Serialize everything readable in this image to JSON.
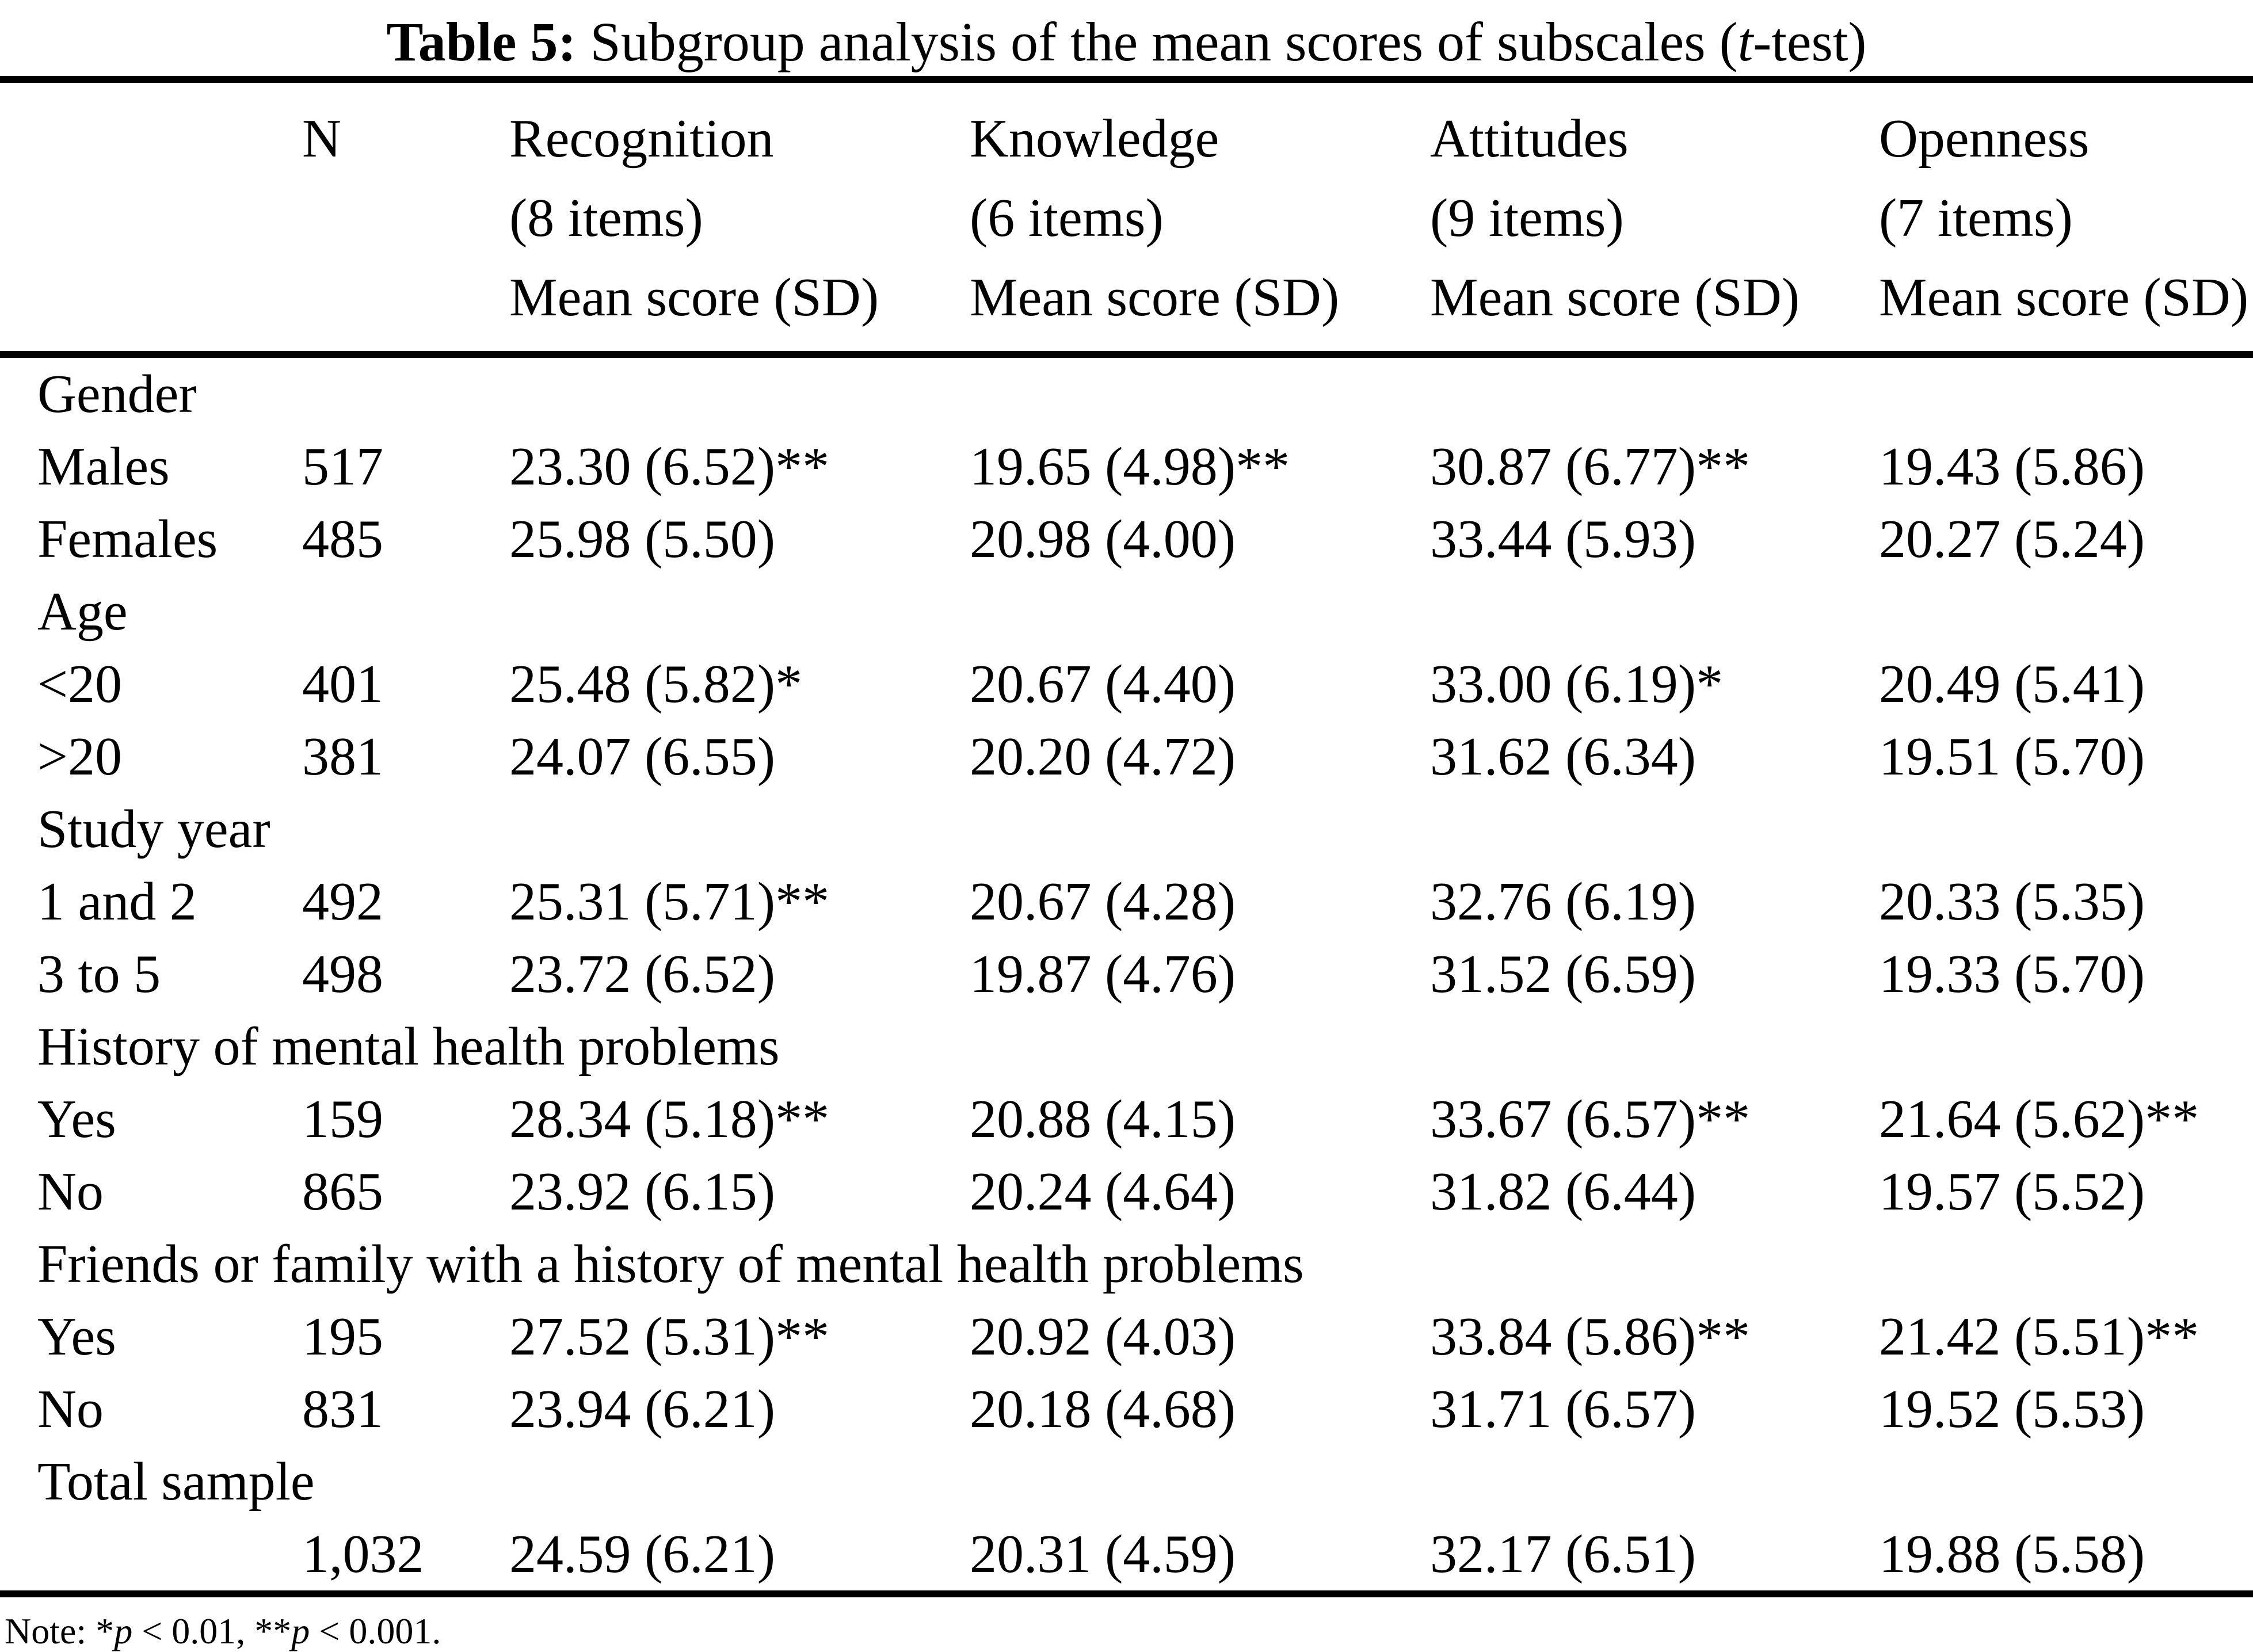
{
  "title": {
    "prefix": "Table 5:",
    "main": "  Subgroup analysis of the mean scores of subscales (",
    "italic_t": "t",
    "suffix": "-test)"
  },
  "header": {
    "n_label": "N",
    "columns": [
      {
        "name": "Recognition",
        "items": "(8 items)",
        "measure": "Mean score (SD)"
      },
      {
        "name": "Knowledge",
        "items": "(6 items)",
        "measure": "Mean score (SD)"
      },
      {
        "name": "Attitudes",
        "items": "(9 items)",
        "measure": "Mean score (SD)"
      },
      {
        "name": "Openness",
        "items": "(7 items)",
        "measure": "Mean score (SD)"
      }
    ]
  },
  "rows": [
    {
      "type": "section",
      "label": "Gender"
    },
    {
      "type": "data",
      "label": "Males",
      "n": "517",
      "recognition": "23.30 (6.52)**",
      "knowledge": "19.65 (4.98)**",
      "attitudes": "30.87 (6.77)**",
      "openness": "19.43 (5.86)"
    },
    {
      "type": "data",
      "label": "Females",
      "n": "485",
      "recognition": "25.98 (5.50)",
      "knowledge": "20.98 (4.00)",
      "attitudes": "33.44 (5.93)",
      "openness": "20.27 (5.24)"
    },
    {
      "type": "section",
      "label": "Age"
    },
    {
      "type": "data",
      "label": "<20",
      "n": "401",
      "recognition": "25.48 (5.82)*",
      "knowledge": "20.67 (4.40)",
      "attitudes": "33.00 (6.19)*",
      "openness": "20.49 (5.41)"
    },
    {
      "type": "data",
      "label": ">20",
      "n": "381",
      "recognition": "24.07 (6.55)",
      "knowledge": "20.20 (4.72)",
      "attitudes": "31.62 (6.34)",
      "openness": "19.51 (5.70)"
    },
    {
      "type": "section",
      "label": "Study year"
    },
    {
      "type": "data",
      "label": "1 and 2",
      "n": "492",
      "recognition": "25.31 (5.71)**",
      "knowledge": "20.67 (4.28)",
      "attitudes": "32.76 (6.19)",
      "openness": "20.33 (5.35)"
    },
    {
      "type": "data",
      "label": "3 to 5",
      "n": "498",
      "recognition": "23.72 (6.52)",
      "knowledge": "19.87 (4.76)",
      "attitudes": "31.52 (6.59)",
      "openness": "19.33 (5.70)"
    },
    {
      "type": "section",
      "label": "History of mental health problems"
    },
    {
      "type": "data",
      "label": "Yes",
      "n": "159",
      "recognition": "28.34 (5.18)**",
      "knowledge": "20.88 (4.15)",
      "attitudes": "33.67 (6.57)**",
      "openness": "21.64 (5.62)**"
    },
    {
      "type": "data",
      "label": "No",
      "n": "865",
      "recognition": "23.92 (6.15)",
      "knowledge": "20.24 (4.64)",
      "attitudes": "31.82 (6.44)",
      "openness": "19.57 (5.52)"
    },
    {
      "type": "section",
      "label": "Friends or family with a history of mental health problems"
    },
    {
      "type": "data",
      "label": "Yes",
      "n": "195",
      "recognition": "27.52 (5.31)**",
      "knowledge": "20.92 (4.03)",
      "attitudes": "33.84 (5.86)**",
      "openness": "21.42 (5.51)**"
    },
    {
      "type": "data",
      "label": "No",
      "n": "831",
      "recognition": "23.94 (6.21)",
      "knowledge": "20.18 (4.68)",
      "attitudes": "31.71 (6.57)",
      "openness": "19.52 (5.53)"
    },
    {
      "type": "section",
      "label": "Total sample"
    },
    {
      "type": "data",
      "label": "",
      "n": "1,032",
      "recognition": "24.59 (6.21)",
      "knowledge": "20.31 (4.59)",
      "attitudes": "32.17 (6.51)",
      "openness": "19.88 (5.58)"
    }
  ],
  "note": {
    "seg1": "Note: *",
    "p1": "p",
    "seg2": " < 0.01, **",
    "p2": "p",
    "seg3": " < 0.001."
  }
}
